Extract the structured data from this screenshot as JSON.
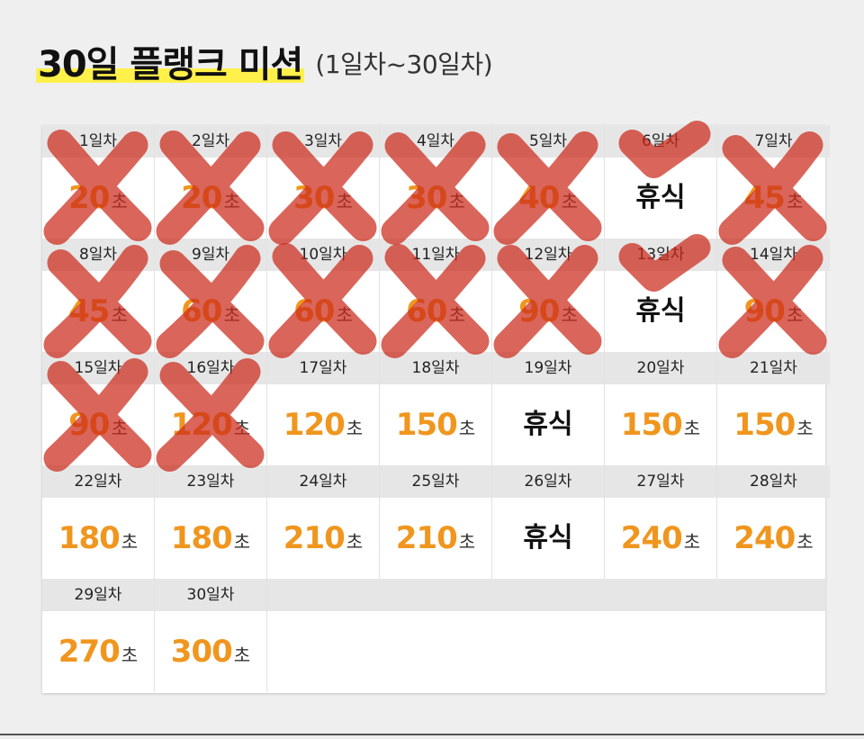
{
  "header": {
    "title": "30일 플랭크 미션",
    "subtitle": "(1일차~30일차)"
  },
  "unit": "초",
  "rest_label": "휴식",
  "accent_color": "#f0961e",
  "mark_color": "#cc2a1a",
  "days": [
    {
      "label": "1일차",
      "value": "20",
      "rest": false,
      "marked": true
    },
    {
      "label": "2일차",
      "value": "20",
      "rest": false,
      "marked": true
    },
    {
      "label": "3일차",
      "value": "30",
      "rest": false,
      "marked": true
    },
    {
      "label": "4일차",
      "value": "30",
      "rest": false,
      "marked": true
    },
    {
      "label": "5일차",
      "value": "40",
      "rest": false,
      "marked": true
    },
    {
      "label": "6일차",
      "value": "",
      "rest": true,
      "marked": true
    },
    {
      "label": "7일차",
      "value": "45",
      "rest": false,
      "marked": true
    },
    {
      "label": "8일차",
      "value": "45",
      "rest": false,
      "marked": true
    },
    {
      "label": "9일차",
      "value": "60",
      "rest": false,
      "marked": true
    },
    {
      "label": "10일차",
      "value": "60",
      "rest": false,
      "marked": true
    },
    {
      "label": "11일차",
      "value": "60",
      "rest": false,
      "marked": true
    },
    {
      "label": "12일차",
      "value": "90",
      "rest": false,
      "marked": true
    },
    {
      "label": "13일차",
      "value": "",
      "rest": true,
      "marked": true
    },
    {
      "label": "14일차",
      "value": "90",
      "rest": false,
      "marked": true
    },
    {
      "label": "15일차",
      "value": "90",
      "rest": false,
      "marked": true
    },
    {
      "label": "16일차",
      "value": "120",
      "rest": false,
      "marked": true
    },
    {
      "label": "17일차",
      "value": "120",
      "rest": false,
      "marked": false
    },
    {
      "label": "18일차",
      "value": "150",
      "rest": false,
      "marked": false
    },
    {
      "label": "19일차",
      "value": "",
      "rest": true,
      "marked": false
    },
    {
      "label": "20일차",
      "value": "150",
      "rest": false,
      "marked": false
    },
    {
      "label": "21일차",
      "value": "150",
      "rest": false,
      "marked": false
    },
    {
      "label": "22일차",
      "value": "180",
      "rest": false,
      "marked": false
    },
    {
      "label": "23일차",
      "value": "180",
      "rest": false,
      "marked": false
    },
    {
      "label": "24일차",
      "value": "210",
      "rest": false,
      "marked": false
    },
    {
      "label": "25일차",
      "value": "210",
      "rest": false,
      "marked": false
    },
    {
      "label": "26일차",
      "value": "",
      "rest": true,
      "marked": false
    },
    {
      "label": "27일차",
      "value": "240",
      "rest": false,
      "marked": false
    },
    {
      "label": "28일차",
      "value": "240",
      "rest": false,
      "marked": false
    },
    {
      "label": "29일차",
      "value": "270",
      "rest": false,
      "marked": false
    },
    {
      "label": "30일차",
      "value": "300",
      "rest": false,
      "marked": false
    }
  ]
}
